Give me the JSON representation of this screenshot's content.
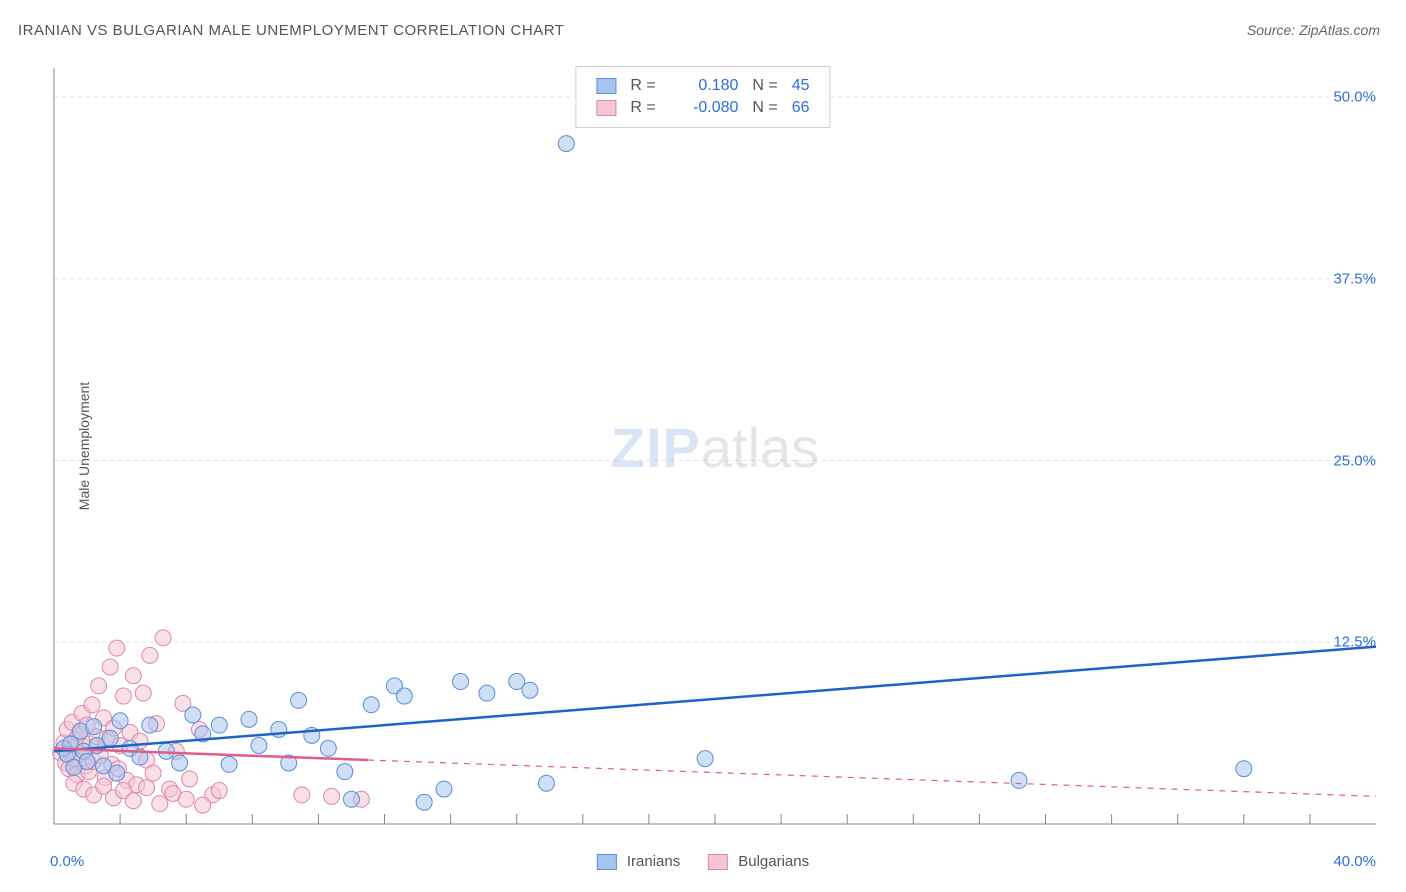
{
  "title": "IRANIAN VS BULGARIAN MALE UNEMPLOYMENT CORRELATION CHART",
  "source": "Source: ZipAtlas.com",
  "ylabel": "Male Unemployment",
  "watermark": {
    "zip": "ZIP",
    "atlas": "atlas"
  },
  "chart": {
    "type": "scatter",
    "background_color": "#ffffff",
    "grid_color": "#e5e5e5",
    "axis_color": "#888888",
    "tick_color": "#888888",
    "title_fontsize": 15,
    "label_fontsize": 14,
    "tick_fontsize": 15,
    "tick_label_color": "#2f6fd6",
    "xlim": [
      0,
      40
    ],
    "ylim": [
      0,
      52
    ],
    "xticks_minor": [
      2,
      4,
      6,
      8,
      10,
      12,
      14,
      16,
      18,
      20,
      22,
      24,
      26,
      28,
      30,
      32,
      34,
      36,
      38
    ],
    "yticks": [
      12.5,
      25.0,
      37.5,
      50.0
    ],
    "ytick_labels": [
      "12.5%",
      "25.0%",
      "37.5%",
      "50.0%"
    ],
    "xtick_labels": {
      "min": "0.0%",
      "max": "40.0%"
    },
    "marker_radius": 8,
    "marker_opacity": 0.55,
    "line_width_solid": 2.5,
    "line_width_dash": 1.2,
    "dash_pattern": "6,6",
    "series": [
      {
        "name": "Iranians",
        "fill_color": "#a6c5ee",
        "stroke_color": "#5b8fd6",
        "line_color": "#1f63c9",
        "r": "0.180",
        "n": "45",
        "trend_solid": {
          "x1": 0,
          "y1": 5.0,
          "x2": 40,
          "y2": 12.2
        },
        "trend_dash": {
          "x1": 0,
          "y1": 5.0,
          "x2": 40,
          "y2": 12.2
        },
        "points": [
          [
            0.3,
            5.2
          ],
          [
            0.4,
            4.8
          ],
          [
            0.5,
            5.5
          ],
          [
            0.6,
            3.9
          ],
          [
            0.8,
            6.4
          ],
          [
            0.9,
            5.0
          ],
          [
            1.0,
            4.3
          ],
          [
            1.2,
            6.7
          ],
          [
            1.3,
            5.4
          ],
          [
            1.5,
            4.0
          ],
          [
            1.7,
            5.9
          ],
          [
            1.9,
            3.5
          ],
          [
            2.0,
            7.1
          ],
          [
            2.3,
            5.2
          ],
          [
            2.6,
            4.6
          ],
          [
            2.9,
            6.8
          ],
          [
            3.4,
            5.0
          ],
          [
            3.8,
            4.2
          ],
          [
            4.2,
            7.5
          ],
          [
            4.5,
            6.2
          ],
          [
            5.0,
            6.8
          ],
          [
            5.3,
            4.1
          ],
          [
            5.9,
            7.2
          ],
          [
            6.2,
            5.4
          ],
          [
            6.8,
            6.5
          ],
          [
            7.1,
            4.2
          ],
          [
            7.4,
            8.5
          ],
          [
            7.8,
            6.1
          ],
          [
            8.3,
            5.2
          ],
          [
            8.8,
            3.6
          ],
          [
            9.6,
            8.2
          ],
          [
            10.3,
            9.5
          ],
          [
            10.6,
            8.8
          ],
          [
            11.8,
            2.4
          ],
          [
            12.3,
            9.8
          ],
          [
            13.1,
            9.0
          ],
          [
            14.0,
            9.8
          ],
          [
            14.4,
            9.2
          ],
          [
            14.9,
            2.8
          ],
          [
            15.5,
            46.8
          ],
          [
            19.7,
            4.5
          ],
          [
            29.2,
            3.0
          ],
          [
            36.0,
            3.8
          ],
          [
            9.0,
            1.7
          ],
          [
            11.2,
            1.5
          ]
        ]
      },
      {
        "name": "Bulgarians",
        "fill_color": "#f4c5d5",
        "stroke_color": "#e088a8",
        "line_color": "#e05c8a",
        "r": "-0.080",
        "n": "66",
        "trend_solid": {
          "x1": 0,
          "y1": 5.2,
          "x2": 9.5,
          "y2": 4.4
        },
        "trend_dash": {
          "x1": 9.5,
          "y1": 4.4,
          "x2": 40,
          "y2": 1.9
        },
        "points": [
          [
            0.2,
            4.9
          ],
          [
            0.3,
            5.6
          ],
          [
            0.35,
            4.2
          ],
          [
            0.4,
            6.5
          ],
          [
            0.45,
            3.8
          ],
          [
            0.5,
            5.1
          ],
          [
            0.55,
            7.0
          ],
          [
            0.6,
            4.5
          ],
          [
            0.65,
            5.8
          ],
          [
            0.7,
            3.4
          ],
          [
            0.75,
            6.2
          ],
          [
            0.8,
            4.8
          ],
          [
            0.85,
            7.6
          ],
          [
            0.9,
            5.3
          ],
          [
            0.95,
            4.0
          ],
          [
            1.0,
            6.8
          ],
          [
            1.05,
            3.6
          ],
          [
            1.1,
            5.5
          ],
          [
            1.15,
            8.2
          ],
          [
            1.2,
            4.3
          ],
          [
            1.3,
            6.0
          ],
          [
            1.35,
            9.5
          ],
          [
            1.4,
            4.7
          ],
          [
            1.5,
            7.3
          ],
          [
            1.55,
            3.2
          ],
          [
            1.6,
            5.9
          ],
          [
            1.7,
            10.8
          ],
          [
            1.75,
            4.1
          ],
          [
            1.8,
            6.6
          ],
          [
            1.9,
            12.1
          ],
          [
            1.95,
            3.8
          ],
          [
            2.0,
            5.4
          ],
          [
            2.1,
            8.8
          ],
          [
            2.2,
            3.0
          ],
          [
            2.3,
            6.3
          ],
          [
            2.4,
            10.2
          ],
          [
            2.5,
            2.7
          ],
          [
            2.6,
            5.7
          ],
          [
            2.7,
            9.0
          ],
          [
            2.8,
            4.4
          ],
          [
            2.9,
            11.6
          ],
          [
            3.0,
            3.5
          ],
          [
            3.1,
            6.9
          ],
          [
            3.3,
            12.8
          ],
          [
            3.5,
            2.4
          ],
          [
            3.7,
            5.0
          ],
          [
            3.9,
            8.3
          ],
          [
            4.1,
            3.1
          ],
          [
            4.4,
            6.5
          ],
          [
            4.8,
            2.0
          ],
          [
            0.6,
            2.8
          ],
          [
            0.9,
            2.4
          ],
          [
            1.2,
            2.0
          ],
          [
            1.5,
            2.6
          ],
          [
            1.8,
            1.8
          ],
          [
            2.1,
            2.3
          ],
          [
            2.4,
            1.6
          ],
          [
            2.8,
            2.5
          ],
          [
            3.2,
            1.4
          ],
          [
            3.6,
            2.1
          ],
          [
            4.0,
            1.7
          ],
          [
            4.5,
            1.3
          ],
          [
            5.0,
            2.3
          ],
          [
            7.5,
            2.0
          ],
          [
            8.4,
            1.9
          ],
          [
            9.3,
            1.7
          ]
        ]
      }
    ],
    "legend_bottom": [
      {
        "label": "Iranians",
        "fill": "#a6c5ee",
        "stroke": "#5b8fd6"
      },
      {
        "label": "Bulgarians",
        "fill": "#f4c5d5",
        "stroke": "#e088a8"
      }
    ]
  }
}
